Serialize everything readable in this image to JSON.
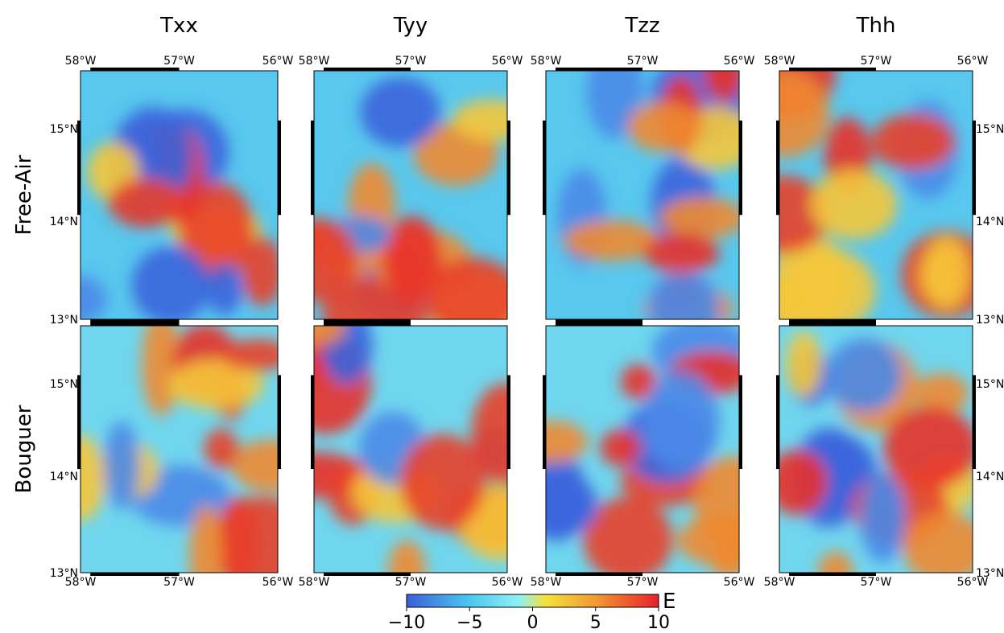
{
  "columns": [
    "Txx",
    "Tyy",
    "Tzz",
    "Thh"
  ],
  "rows": [
    "Free-Air",
    "Bouguer"
  ],
  "longitude_labels": [
    "58°W",
    "57°W",
    "56°W"
  ],
  "latitude_labels": [
    "15°N",
    "14°N",
    "13°N"
  ],
  "colorbar": {
    "label": "E",
    "range": [
      -10,
      10
    ],
    "ticks": [
      {
        "value": -10,
        "label": "−10"
      },
      {
        "value": -5,
        "label": "−5"
      },
      0,
      5,
      10
    ]
  }
}
